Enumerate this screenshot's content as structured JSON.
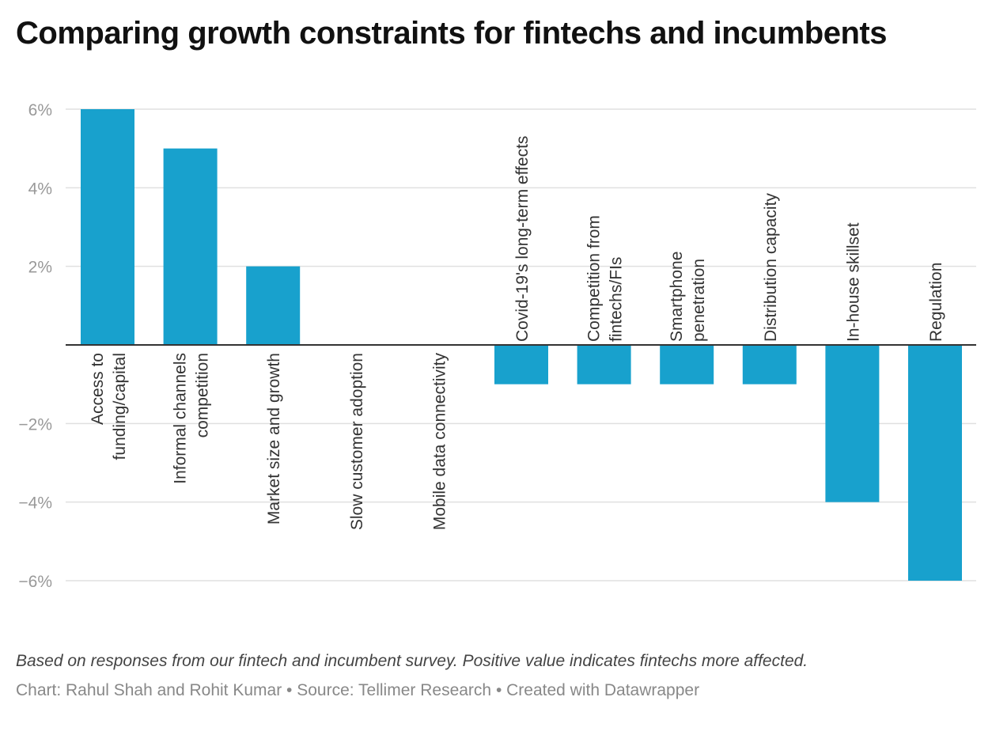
{
  "title": "Comparing growth constraints for fintechs and incumbents",
  "note": "Based on responses from our fintech and incumbent survey. Positive value indicates fintechs more affected.",
  "credit": {
    "chart": "Chart: Rahul Shah and Rohit Kumar",
    "separator": " • ",
    "source": "Source: Tellimer Research",
    "tool": "Created with Datawrapper"
  },
  "colors": {
    "bar": "#18a1cd",
    "grid": "#e0e0e0",
    "baseline": "#333333",
    "tick": "#999999",
    "label": "#333333"
  },
  "chart_data": {
    "type": "bar",
    "title": "Comparing growth constraints for fintechs and incumbents",
    "xlabel": "",
    "ylabel": "",
    "ylim": [
      -6,
      6
    ],
    "yticks": [
      6,
      4,
      2,
      -2,
      -4,
      -6
    ],
    "ytick_labels": [
      "6%",
      "4%",
      "2%",
      "−2%",
      "−4%",
      "−6%"
    ],
    "categories": [
      [
        "Access to",
        "funding/capital"
      ],
      [
        "Informal channels",
        "competition"
      ],
      [
        "Market size and growth"
      ],
      [
        "Slow customer adoption"
      ],
      [
        "Mobile data connectivity"
      ],
      [
        "Covid-19's long-term effects"
      ],
      [
        "Competition from",
        "fintechs/FIs"
      ],
      [
        "Smartphone",
        "penetration"
      ],
      [
        "Distribution capacity"
      ],
      [
        "In-house skillset"
      ],
      [
        "Regulation"
      ]
    ],
    "values": [
      6,
      5,
      2,
      0,
      0,
      -1,
      -1,
      -1,
      -1,
      -4,
      -6
    ],
    "unit": "%"
  }
}
